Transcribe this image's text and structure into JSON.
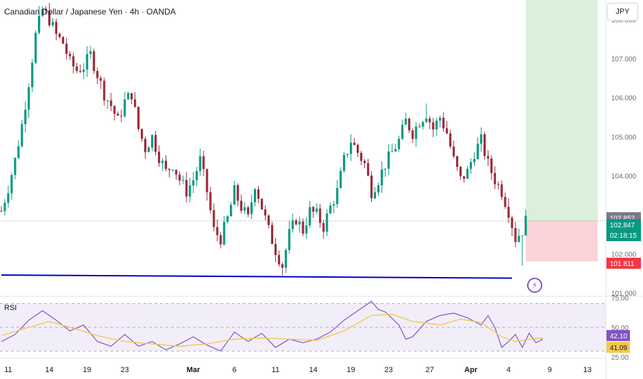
{
  "header": {
    "title": "Canadian Dollar / Japanese Yen · 4h · OANDA",
    "currency": "JPY"
  },
  "rsi_panel": {
    "label": "RSI"
  },
  "colors": {
    "up": "#089981",
    "down": "#9c2b3a",
    "rsi_line": "#7e57c2",
    "rsi_ma": "#f2c94c",
    "trendline": "#0000cc",
    "target_zone": "#dbefdb",
    "stop_zone": "#f9d3d7"
  },
  "chart_data": [
    {
      "type": "candlestick",
      "title": "Canadian Dollar / Japanese Yen · 4h · OANDA",
      "ylim": [
        100.95,
        108.5
      ],
      "y_ticks": [
        {
          "value": 108.0,
          "label": "108.000"
        },
        {
          "value": 107.0,
          "label": "107.000"
        },
        {
          "value": 106.0,
          "label": "106.000"
        },
        {
          "value": 105.0,
          "label": "105.000"
        },
        {
          "value": 104.0,
          "label": "104.000"
        },
        {
          "value": 102.0,
          "label": "102.000"
        },
        {
          "value": 101.0,
          "label": "101.000"
        }
      ],
      "x_ticks": [
        "11",
        "14",
        "19",
        "23",
        "Mar",
        "6",
        "11",
        "14",
        "19",
        "23",
        "27",
        "Apr",
        "4",
        "9",
        "13"
      ],
      "close_path": [
        [
          0,
          103.1
        ],
        [
          2,
          103.7
        ],
        [
          4,
          104.4
        ],
        [
          6,
          105.3
        ],
        [
          8,
          106.4
        ],
        [
          10,
          107.6
        ],
        [
          12,
          108.25
        ],
        [
          14,
          108.0
        ],
        [
          16,
          107.6
        ],
        [
          18,
          107.4
        ],
        [
          20,
          106.9
        ],
        [
          22,
          106.7
        ],
        [
          24,
          106.8
        ],
        [
          26,
          107.1
        ],
        [
          28,
          106.6
        ],
        [
          30,
          106.1
        ],
        [
          32,
          105.8
        ],
        [
          34,
          105.4
        ],
        [
          36,
          105.9
        ],
        [
          38,
          106.1
        ],
        [
          40,
          105.2
        ],
        [
          42,
          104.7
        ],
        [
          44,
          105.0
        ],
        [
          46,
          104.5
        ],
        [
          48,
          104.1
        ],
        [
          50,
          104.3
        ],
        [
          52,
          103.9
        ],
        [
          54,
          103.6
        ],
        [
          56,
          103.9
        ],
        [
          58,
          104.4
        ],
        [
          60,
          103.6
        ],
        [
          62,
          102.6
        ],
        [
          64,
          102.4
        ],
        [
          66,
          102.9
        ],
        [
          68,
          103.6
        ],
        [
          70,
          103.2
        ],
        [
          72,
          102.9
        ],
        [
          74,
          103.8
        ],
        [
          76,
          103.2
        ],
        [
          78,
          102.6
        ],
        [
          80,
          102.1
        ],
        [
          82,
          101.7
        ],
        [
          84,
          102.5
        ],
        [
          86,
          102.9
        ],
        [
          88,
          102.6
        ],
        [
          90,
          103.1
        ],
        [
          92,
          103.0
        ],
        [
          94,
          102.7
        ],
        [
          96,
          103.2
        ],
        [
          98,
          103.6
        ],
        [
          100,
          104.4
        ],
        [
          102,
          104.9
        ],
        [
          104,
          104.6
        ],
        [
          106,
          104.3
        ],
        [
          108,
          103.6
        ],
        [
          110,
          103.9
        ],
        [
          112,
          104.3
        ],
        [
          114,
          104.6
        ],
        [
          116,
          104.9
        ],
        [
          118,
          105.4
        ],
        [
          120,
          105.1
        ],
        [
          122,
          105.4
        ],
        [
          124,
          105.6
        ],
        [
          126,
          105.2
        ],
        [
          128,
          105.5
        ],
        [
          130,
          105.1
        ],
        [
          132,
          104.4
        ],
        [
          134,
          103.9
        ],
        [
          136,
          104.1
        ],
        [
          138,
          104.6
        ],
        [
          140,
          104.9
        ],
        [
          142,
          104.3
        ],
        [
          144,
          103.9
        ],
        [
          146,
          103.6
        ],
        [
          148,
          103.1
        ],
        [
          150,
          102.4
        ],
        [
          152,
          102.6
        ],
        [
          153,
          102.85
        ]
      ],
      "swing_points": [
        {
          "bar": 11,
          "high": 108.35
        },
        {
          "bar": 82,
          "low": 101.45
        },
        {
          "bar": 124,
          "high": 105.85
        },
        {
          "bar": 152,
          "low": 101.7
        }
      ],
      "trendline": {
        "from": {
          "bar": 0,
          "value": 101.46
        },
        "to": {
          "bar": 149,
          "value": 101.38
        }
      },
      "position": {
        "entry": 102.847,
        "target_top": 108.5,
        "stop": 101.811,
        "x_from_bar": 153,
        "x_to_bar": 174
      },
      "price_tags": [
        {
          "label": "102.852",
          "value": 102.852,
          "style": "gray"
        },
        {
          "label": "102.847",
          "value": 102.847,
          "style": "green",
          "sub": "02:18:15"
        },
        {
          "label": "101.811",
          "value": 101.811,
          "style": "red"
        }
      ]
    },
    {
      "type": "line",
      "title": "RSI",
      "ylim": [
        25,
        75
      ],
      "y_ticks": [
        {
          "value": 75,
          "label": "75.00"
        },
        {
          "value": 50,
          "label": "50.00"
        },
        {
          "value": 25,
          "label": "25.00"
        }
      ],
      "bands": {
        "upper": 70,
        "middle": 50,
        "lower": 30
      },
      "series": [
        {
          "name": "RSI",
          "values": [
            [
              0,
              38
            ],
            [
              4,
              44
            ],
            [
              8,
              56
            ],
            [
              12,
              64
            ],
            [
              16,
              56
            ],
            [
              20,
              47
            ],
            [
              24,
              52
            ],
            [
              28,
              38
            ],
            [
              32,
              34
            ],
            [
              36,
              44
            ],
            [
              40,
              34
            ],
            [
              44,
              38
            ],
            [
              48,
              31
            ],
            [
              52,
              36
            ],
            [
              56,
              42
            ],
            [
              60,
              35
            ],
            [
              64,
              30
            ],
            [
              68,
              46
            ],
            [
              72,
              38
            ],
            [
              76,
              45
            ],
            [
              80,
              33
            ],
            [
              84,
              40
            ],
            [
              88,
              37
            ],
            [
              92,
              40
            ],
            [
              96,
              46
            ],
            [
              100,
              56
            ],
            [
              104,
              64
            ],
            [
              108,
              72
            ],
            [
              110,
              65
            ],
            [
              112,
              63
            ],
            [
              116,
              52
            ],
            [
              118,
              40
            ],
            [
              120,
              42
            ],
            [
              124,
              55
            ],
            [
              128,
              60
            ],
            [
              132,
              62
            ],
            [
              136,
              58
            ],
            [
              140,
              52
            ],
            [
              142,
              60
            ],
            [
              144,
              50
            ],
            [
              146,
              33
            ],
            [
              148,
              38
            ],
            [
              150,
              44
            ],
            [
              152,
              33
            ],
            [
              154,
              45
            ],
            [
              156,
              37
            ],
            [
              158,
              40
            ]
          ]
        },
        {
          "name": "RSI-based MA",
          "values": [
            [
              0,
              43
            ],
            [
              8,
              50
            ],
            [
              14,
              55
            ],
            [
              20,
              50
            ],
            [
              28,
              43
            ],
            [
              36,
              38
            ],
            [
              44,
              36
            ],
            [
              52,
              34
            ],
            [
              60,
              36
            ],
            [
              68,
              40
            ],
            [
              76,
              41
            ],
            [
              84,
              40
            ],
            [
              92,
              39
            ],
            [
              100,
              47
            ],
            [
              108,
              60
            ],
            [
              114,
              61
            ],
            [
              120,
              55
            ],
            [
              128,
              52
            ],
            [
              134,
              57
            ],
            [
              140,
              54
            ],
            [
              146,
              42
            ],
            [
              150,
              38
            ],
            [
              154,
              40
            ],
            [
              158,
              41
            ]
          ]
        }
      ],
      "value_tags": [
        {
          "label": "42.10",
          "value": 42.1,
          "style": "purple"
        },
        {
          "label": "41.09",
          "value": 41.09,
          "style": "yellow"
        }
      ]
    }
  ]
}
